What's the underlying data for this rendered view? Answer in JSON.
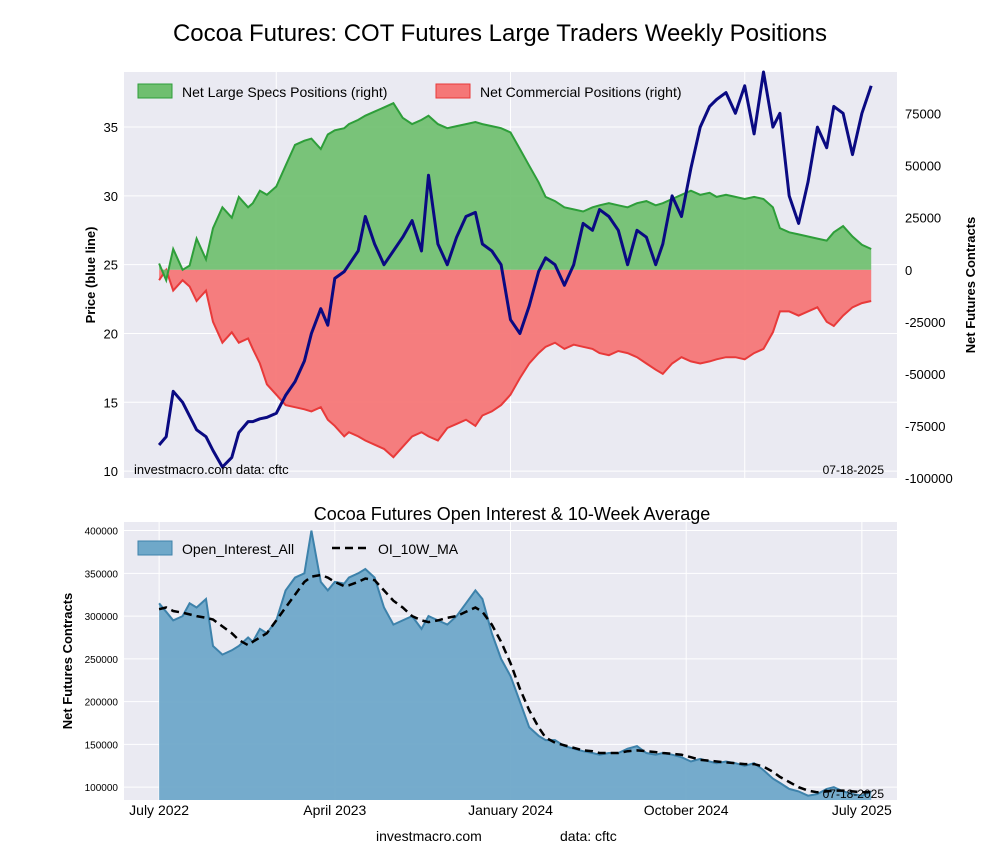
{
  "page": {
    "title": "Cocoa Futures: COT Futures Large Traders Weekly Positions",
    "footer_site": "investmacro.com",
    "footer_data": "data: cftc"
  },
  "colors": {
    "specs": "#2e9e3a",
    "specs_fill": "#6fbf6f",
    "commercial": "#e83a3a",
    "commercial_fill": "#f57777",
    "price": "#0a0a82",
    "oi": "#3d82ab",
    "oi_fill": "#6fa8c9",
    "ma": "#000000",
    "panel_bg": "#eaeaf2"
  },
  "chart_data": [
    {
      "type": "area",
      "ylabel_left": "Price (blue line)",
      "ylabel_right": "Net Futures Contracts",
      "ylim_left": [
        9.5,
        39
      ],
      "ylim_right": [
        -100000,
        95000
      ],
      "yticks_left": [
        "10",
        "15",
        "20",
        "25",
        "30",
        "35"
      ],
      "yticks_right": [
        "75000",
        "50000",
        "25000",
        "0",
        "-25000",
        "-50000",
        "-75000",
        "-100000"
      ],
      "legend": [
        "Net Large Specs Positions (right)",
        "Net Commercial Positions (right)"
      ],
      "legend_position": "top-left",
      "watermark_left": "investmacro.com     data: cftc",
      "watermark_right": "07-18-2025",
      "grid": true,
      "x_years": [
        2022.5,
        2022.53,
        2022.56,
        2022.6,
        2022.63,
        2022.66,
        2022.7,
        2022.73,
        2022.77,
        2022.81,
        2022.84,
        2022.88,
        2022.9,
        2022.93,
        2022.96,
        2023.0,
        2023.04,
        2023.08,
        2023.12,
        2023.15,
        2023.19,
        2023.22,
        2023.25,
        2023.29,
        2023.31,
        2023.35,
        2023.38,
        2023.42,
        2023.46,
        2023.5,
        2023.54,
        2023.58,
        2023.62,
        2023.65,
        2023.69,
        2023.73,
        2023.77,
        2023.81,
        2023.85,
        2023.88,
        2023.92,
        2023.96,
        2024.0,
        2024.04,
        2024.08,
        2024.12,
        2024.15,
        2024.19,
        2024.23,
        2024.27,
        2024.31,
        2024.35,
        2024.38,
        2024.42,
        2024.46,
        2024.5,
        2024.54,
        2024.58,
        2024.62,
        2024.65,
        2024.69,
        2024.73,
        2024.77,
        2024.81,
        2024.85,
        2024.88,
        2024.92,
        2024.96,
        2025.0,
        2025.04,
        2025.08,
        2025.12,
        2025.15,
        2025.19,
        2025.23,
        2025.27,
        2025.31,
        2025.35,
        2025.38,
        2025.42,
        2025.46,
        2025.5,
        2025.54
      ],
      "price": [
        11.9,
        12.5,
        15.8,
        15.0,
        14.0,
        13.0,
        12.5,
        11.5,
        10.3,
        11.0,
        12.8,
        13.6,
        13.6,
        13.8,
        13.9,
        14.2,
        15.5,
        16.5,
        18.0,
        20.0,
        21.8,
        20.6,
        24.0,
        24.5,
        25.0,
        26.0,
        28.5,
        26.5,
        25.0,
        26.0,
        27.0,
        28.2,
        26.0,
        31.5,
        26.5,
        25.0,
        27.0,
        28.5,
        28.8,
        26.5,
        26.0,
        25.0,
        21.0,
        20.0,
        22.0,
        24.5,
        25.5,
        25.0,
        23.5,
        25.0,
        28.0,
        27.5,
        29.0,
        28.5,
        27.5,
        25.0,
        27.5,
        27.0,
        25.0,
        26.5,
        30.0,
        28.5,
        32.0,
        35.0,
        36.5,
        37.0,
        37.5,
        36.0,
        38.0,
        34.5,
        39.0,
        35.0,
        36.0,
        30.0,
        28.0,
        31.0,
        35.0,
        33.5,
        36.5,
        36.0,
        33.0,
        36.0,
        38.0
      ],
      "specs": [
        3000,
        -5000,
        10000,
        0,
        2000,
        15000,
        5000,
        20000,
        30000,
        25000,
        35000,
        30000,
        32000,
        38000,
        36000,
        40000,
        50000,
        60000,
        62000,
        63000,
        58000,
        65000,
        67000,
        68000,
        70000,
        72000,
        74000,
        76000,
        78000,
        80000,
        73000,
        70000,
        72000,
        74000,
        70000,
        68000,
        69000,
        70000,
        71000,
        70000,
        69000,
        68000,
        66000,
        58000,
        50000,
        42000,
        35000,
        33000,
        30000,
        29000,
        28000,
        30000,
        31000,
        32000,
        31000,
        30000,
        32000,
        33000,
        31000,
        32000,
        34000,
        36000,
        38000,
        36000,
        37000,
        35000,
        36000,
        35000,
        34000,
        35000,
        34000,
        30000,
        20000,
        18000,
        17000,
        16000,
        15000,
        14000,
        18000,
        21000,
        16000,
        12000,
        10000
      ],
      "commercial": [
        -5000,
        0,
        -10000,
        -5000,
        -8000,
        -15000,
        -10000,
        -25000,
        -35000,
        -30000,
        -35000,
        -33000,
        -38000,
        -45000,
        -55000,
        -60000,
        -65000,
        -66000,
        -67000,
        -68000,
        -66000,
        -72000,
        -75000,
        -80000,
        -78000,
        -80000,
        -82000,
        -84000,
        -86000,
        -90000,
        -85000,
        -80000,
        -78000,
        -80000,
        -82000,
        -76000,
        -74000,
        -72000,
        -75000,
        -70000,
        -68000,
        -65000,
        -60000,
        -52000,
        -45000,
        -40000,
        -37000,
        -35000,
        -38000,
        -36000,
        -37000,
        -38000,
        -40000,
        -41000,
        -39000,
        -40000,
        -42000,
        -45000,
        -48000,
        -50000,
        -45000,
        -42000,
        -44000,
        -45000,
        -44000,
        -43000,
        -42000,
        -42000,
        -43000,
        -40000,
        -38000,
        -30000,
        -20000,
        -20000,
        -22000,
        -20000,
        -18000,
        -25000,
        -27000,
        -22000,
        -18000,
        -16000,
        -15000
      ]
    },
    {
      "type": "area",
      "title": "Cocoa Futures Open Interest & 10-Week Average",
      "ylabel": "Net Futures Contracts",
      "ylim": [
        85000,
        410000
      ],
      "yticks": [
        "100000",
        "150000",
        "200000",
        "250000",
        "300000",
        "350000",
        "400000"
      ],
      "xticks": [
        "July 2022",
        "April 2023",
        "January 2024",
        "October 2024",
        "July 2025"
      ],
      "legend": [
        "Open_Interest_All",
        "OI_10W_MA"
      ],
      "legend_position": "top-left",
      "watermark_right": "07-18-2025",
      "grid": true,
      "x_years": [
        2022.5,
        2022.53,
        2022.56,
        2022.6,
        2022.63,
        2022.66,
        2022.7,
        2022.73,
        2022.77,
        2022.81,
        2022.84,
        2022.88,
        2022.9,
        2022.93,
        2022.96,
        2023.0,
        2023.04,
        2023.08,
        2023.12,
        2023.15,
        2023.19,
        2023.22,
        2023.25,
        2023.29,
        2023.31,
        2023.35,
        2023.38,
        2023.42,
        2023.46,
        2023.5,
        2023.54,
        2023.58,
        2023.62,
        2023.65,
        2023.69,
        2023.73,
        2023.77,
        2023.81,
        2023.85,
        2023.88,
        2023.92,
        2023.96,
        2024.0,
        2024.04,
        2024.08,
        2024.12,
        2024.15,
        2024.19,
        2024.23,
        2024.27,
        2024.31,
        2024.35,
        2024.38,
        2024.42,
        2024.46,
        2024.5,
        2024.54,
        2024.58,
        2024.62,
        2024.65,
        2024.69,
        2024.73,
        2024.77,
        2024.81,
        2024.85,
        2024.88,
        2024.92,
        2024.96,
        2025.0,
        2025.04,
        2025.08,
        2025.12,
        2025.15,
        2025.19,
        2025.23,
        2025.27,
        2025.31,
        2025.35,
        2025.38,
        2025.42,
        2025.46,
        2025.5,
        2025.54
      ],
      "open_interest": [
        315000,
        305000,
        295000,
        300000,
        315000,
        310000,
        320000,
        265000,
        255000,
        260000,
        265000,
        275000,
        270000,
        285000,
        280000,
        295000,
        330000,
        345000,
        350000,
        400000,
        340000,
        330000,
        340000,
        338000,
        345000,
        350000,
        355000,
        345000,
        310000,
        290000,
        295000,
        300000,
        285000,
        300000,
        295000,
        290000,
        300000,
        315000,
        330000,
        320000,
        280000,
        250000,
        230000,
        200000,
        170000,
        160000,
        155000,
        155000,
        148000,
        145000,
        142000,
        140000,
        138000,
        140000,
        140000,
        145000,
        148000,
        140000,
        138000,
        140000,
        138000,
        135000,
        130000,
        133000,
        130000,
        128000,
        130000,
        128000,
        125000,
        128000,
        120000,
        110000,
        105000,
        98000,
        95000,
        90000,
        92000,
        98000,
        100000,
        95000,
        92000,
        90000,
        95000
      ],
      "oi_10w_ma": [
        308000,
        310000,
        306000,
        304000,
        302000,
        300000,
        298000,
        296000,
        288000,
        280000,
        272000,
        266000,
        270000,
        275000,
        280000,
        295000,
        310000,
        325000,
        340000,
        346000,
        348000,
        345000,
        340000,
        335000,
        336000,
        340000,
        344000,
        342000,
        330000,
        318000,
        310000,
        300000,
        295000,
        293000,
        295000,
        298000,
        300000,
        305000,
        310000,
        305000,
        290000,
        270000,
        245000,
        215000,
        190000,
        170000,
        158000,
        152000,
        149000,
        146000,
        143000,
        142000,
        140000,
        140000,
        140000,
        142000,
        143000,
        142000,
        141000,
        140000,
        139000,
        138000,
        135000,
        132000,
        131000,
        130000,
        129000,
        128000,
        127000,
        127000,
        124000,
        118000,
        112000,
        106000,
        100000,
        96000,
        94000,
        95000,
        96000,
        96000,
        95000,
        94000,
        94000
      ]
    }
  ]
}
